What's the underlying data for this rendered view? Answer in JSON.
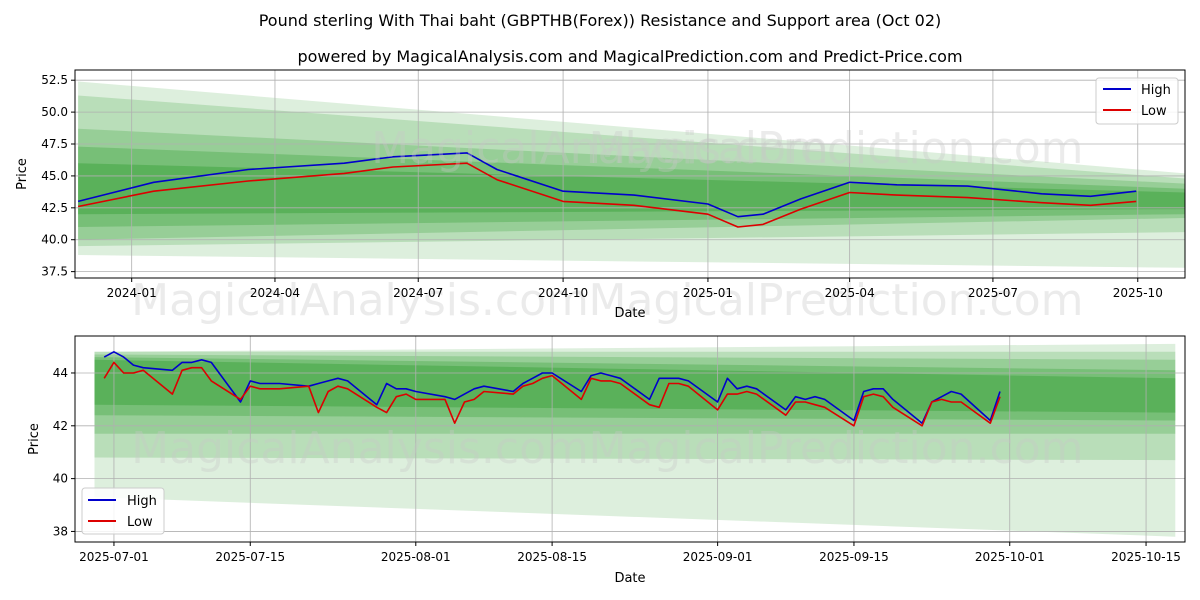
{
  "title": "Pound sterling With Thai baht (GBPTHB(Forex)) Resistance and Support area (Oct 02)",
  "subtitle": "powered by MagicalAnalysis.com and MagicalPrediction.com and Predict-Price.com",
  "watermarks": [
    "MagicalAnalysis.com",
    "MagicalPrediction.com"
  ],
  "colors": {
    "high": "#0000cc",
    "low": "#dd0000",
    "band": "#2e9a2e",
    "grid": "#b0b0b0"
  },
  "chart_data": [
    {
      "type": "line",
      "xlabel": "Date",
      "ylabel": "Price",
      "x_ticks": [
        "2024-01",
        "2024-04",
        "2024-07",
        "2024-10",
        "2025-01",
        "2025-04",
        "2025-07",
        "2025-10"
      ],
      "y_ticks": [
        "37.5",
        "40.0",
        "42.5",
        "45.0",
        "47.5",
        "50.0",
        "52.5"
      ],
      "ylim": [
        37.0,
        53.3
      ],
      "x_range": [
        "2023-11-26",
        "2025-10-31"
      ],
      "legend": [
        "High",
        "Low"
      ],
      "legend_position": "top-right",
      "grid": true,
      "series": [
        {
          "name": "High",
          "x": [
            "2023-11-28",
            "2024-01-15",
            "2024-03-15",
            "2024-05-15",
            "2024-06-15",
            "2024-08-01",
            "2024-08-20",
            "2024-10-01",
            "2024-11-15",
            "2025-01-01",
            "2025-01-20",
            "2025-02-05",
            "2025-03-01",
            "2025-04-01",
            "2025-05-01",
            "2025-06-15",
            "2025-08-01",
            "2025-09-01",
            "2025-09-30"
          ],
          "values": [
            43.0,
            44.5,
            45.5,
            46.0,
            46.5,
            46.8,
            45.5,
            43.8,
            43.5,
            42.8,
            41.8,
            42.0,
            43.2,
            44.5,
            44.3,
            44.2,
            43.6,
            43.4,
            43.8
          ]
        },
        {
          "name": "Low",
          "x": [
            "2023-11-28",
            "2024-01-15",
            "2024-03-15",
            "2024-05-15",
            "2024-06-15",
            "2024-08-01",
            "2024-08-20",
            "2024-10-01",
            "2024-11-15",
            "2025-01-01",
            "2025-01-20",
            "2025-02-05",
            "2025-03-01",
            "2025-04-01",
            "2025-05-01",
            "2025-06-15",
            "2025-08-01",
            "2025-09-01",
            "2025-09-30"
          ],
          "values": [
            42.6,
            43.8,
            44.6,
            45.2,
            45.7,
            46.0,
            44.7,
            43.0,
            42.7,
            42.0,
            41.0,
            41.2,
            42.4,
            43.7,
            43.5,
            43.3,
            42.9,
            42.7,
            43.0
          ]
        }
      ],
      "bands": [
        {
          "x": [
            "2023-11-28",
            "2025-10-31"
          ],
          "upper": [
            52.4,
            45.2
          ],
          "lower": [
            38.8,
            37.8
          ]
        },
        {
          "x": [
            "2023-11-28",
            "2025-10-31"
          ],
          "upper": [
            51.3,
            44.8
          ],
          "lower": [
            39.5,
            40.6
          ]
        },
        {
          "x": [
            "2023-11-28",
            "2025-10-31"
          ],
          "upper": [
            48.7,
            44.4
          ],
          "lower": [
            40.0,
            41.7
          ]
        },
        {
          "x": [
            "2023-11-28",
            "2025-10-31"
          ],
          "upper": [
            47.3,
            44.0
          ],
          "lower": [
            41.0,
            42.0
          ]
        },
        {
          "x": [
            "2023-11-28",
            "2025-10-31"
          ],
          "upper": [
            46.0,
            43.7
          ],
          "lower": [
            42.0,
            42.4
          ]
        }
      ]
    },
    {
      "type": "line",
      "xlabel": "Date",
      "ylabel": "Price",
      "x_ticks": [
        "2025-07-01",
        "2025-07-15",
        "2025-08-01",
        "2025-08-15",
        "2025-09-01",
        "2025-09-15",
        "2025-10-01",
        "2025-10-15"
      ],
      "y_ticks": [
        "38",
        "40",
        "42",
        "44"
      ],
      "ylim": [
        37.6,
        45.4
      ],
      "x_range": [
        "2025-06-27",
        "2025-10-19"
      ],
      "legend": [
        "High",
        "Low"
      ],
      "legend_position": "bottom-left",
      "grid": true,
      "series": [
        {
          "name": "High",
          "x": [
            "2025-06-30",
            "2025-07-01",
            "2025-07-02",
            "2025-07-03",
            "2025-07-04",
            "2025-07-07",
            "2025-07-08",
            "2025-07-09",
            "2025-07-10",
            "2025-07-11",
            "2025-07-14",
            "2025-07-15",
            "2025-07-16",
            "2025-07-17",
            "2025-07-18",
            "2025-07-21",
            "2025-07-22",
            "2025-07-23",
            "2025-07-24",
            "2025-07-25",
            "2025-07-28",
            "2025-07-29",
            "2025-07-30",
            "2025-07-31",
            "2025-08-01",
            "2025-08-04",
            "2025-08-05",
            "2025-08-06",
            "2025-08-07",
            "2025-08-08",
            "2025-08-11",
            "2025-08-12",
            "2025-08-13",
            "2025-08-14",
            "2025-08-15",
            "2025-08-18",
            "2025-08-19",
            "2025-08-20",
            "2025-08-21",
            "2025-08-22",
            "2025-08-25",
            "2025-08-26",
            "2025-08-27",
            "2025-08-28",
            "2025-08-29",
            "2025-09-01",
            "2025-09-02",
            "2025-09-03",
            "2025-09-04",
            "2025-09-05",
            "2025-09-08",
            "2025-09-09",
            "2025-09-10",
            "2025-09-11",
            "2025-09-12",
            "2025-09-15",
            "2025-09-16",
            "2025-09-17",
            "2025-09-18",
            "2025-09-19",
            "2025-09-22",
            "2025-09-23",
            "2025-09-24",
            "2025-09-25",
            "2025-09-26",
            "2025-09-29",
            "2025-09-30"
          ],
          "values": [
            44.6,
            44.8,
            44.6,
            44.3,
            44.2,
            44.1,
            44.4,
            44.4,
            44.5,
            44.4,
            42.9,
            43.7,
            43.6,
            43.6,
            43.6,
            43.5,
            43.6,
            43.7,
            43.8,
            43.7,
            42.8,
            43.6,
            43.4,
            43.4,
            43.3,
            43.1,
            43.0,
            43.2,
            43.4,
            43.5,
            43.3,
            43.6,
            43.8,
            44.0,
            44.0,
            43.3,
            43.9,
            44.0,
            43.9,
            43.8,
            43.0,
            43.8,
            43.8,
            43.8,
            43.7,
            42.9,
            43.8,
            43.4,
            43.5,
            43.4,
            42.6,
            43.1,
            43.0,
            43.1,
            43.0,
            42.2,
            43.3,
            43.4,
            43.4,
            43.0,
            42.1,
            42.9,
            43.1,
            43.3,
            43.2,
            42.2,
            43.3
          ]
        },
        {
          "name": "Low",
          "x": [
            "2025-06-30",
            "2025-07-01",
            "2025-07-02",
            "2025-07-03",
            "2025-07-04",
            "2025-07-07",
            "2025-07-08",
            "2025-07-09",
            "2025-07-10",
            "2025-07-11",
            "2025-07-14",
            "2025-07-15",
            "2025-07-16",
            "2025-07-17",
            "2025-07-18",
            "2025-07-21",
            "2025-07-22",
            "2025-07-23",
            "2025-07-24",
            "2025-07-25",
            "2025-07-28",
            "2025-07-29",
            "2025-07-30",
            "2025-07-31",
            "2025-08-01",
            "2025-08-04",
            "2025-08-05",
            "2025-08-06",
            "2025-08-07",
            "2025-08-08",
            "2025-08-11",
            "2025-08-12",
            "2025-08-13",
            "2025-08-14",
            "2025-08-15",
            "2025-08-18",
            "2025-08-19",
            "2025-08-20",
            "2025-08-21",
            "2025-08-22",
            "2025-08-25",
            "2025-08-26",
            "2025-08-27",
            "2025-08-28",
            "2025-08-29",
            "2025-09-01",
            "2025-09-02",
            "2025-09-03",
            "2025-09-04",
            "2025-09-05",
            "2025-09-08",
            "2025-09-09",
            "2025-09-10",
            "2025-09-11",
            "2025-09-12",
            "2025-09-15",
            "2025-09-16",
            "2025-09-17",
            "2025-09-18",
            "2025-09-19",
            "2025-09-22",
            "2025-09-23",
            "2025-09-24",
            "2025-09-25",
            "2025-09-26",
            "2025-09-29",
            "2025-09-30"
          ],
          "values": [
            43.8,
            44.4,
            44.0,
            44.0,
            44.1,
            43.2,
            44.1,
            44.2,
            44.2,
            43.7,
            43.0,
            43.5,
            43.4,
            43.4,
            43.4,
            43.5,
            42.5,
            43.3,
            43.5,
            43.4,
            42.7,
            42.5,
            43.1,
            43.2,
            43.0,
            43.0,
            42.1,
            42.9,
            43.0,
            43.3,
            43.2,
            43.5,
            43.6,
            43.8,
            43.9,
            43.0,
            43.8,
            43.7,
            43.7,
            43.6,
            42.8,
            42.7,
            43.6,
            43.6,
            43.5,
            42.6,
            43.2,
            43.2,
            43.3,
            43.2,
            42.4,
            42.9,
            42.9,
            42.8,
            42.7,
            42.0,
            43.1,
            43.2,
            43.1,
            42.7,
            42.0,
            42.9,
            43.0,
            42.9,
            42.9,
            42.1,
            43.1
          ]
        }
      ],
      "bands": [
        {
          "x": [
            "2025-06-29",
            "2025-10-18"
          ],
          "upper": [
            44.8,
            45.1
          ],
          "lower": [
            39.3,
            37.8
          ]
        },
        {
          "x": [
            "2025-06-29",
            "2025-10-18"
          ],
          "upper": [
            44.8,
            44.8
          ],
          "lower": [
            40.8,
            40.7
          ]
        },
        {
          "x": [
            "2025-06-29",
            "2025-10-18"
          ],
          "upper": [
            44.7,
            44.5
          ],
          "lower": [
            41.7,
            41.7
          ]
        },
        {
          "x": [
            "2025-06-29",
            "2025-10-18"
          ],
          "upper": [
            44.6,
            44.1
          ],
          "lower": [
            42.4,
            42.2
          ]
        },
        {
          "x": [
            "2025-06-29",
            "2025-10-18"
          ],
          "upper": [
            44.5,
            43.8
          ],
          "lower": [
            42.8,
            42.5
          ]
        }
      ]
    }
  ]
}
